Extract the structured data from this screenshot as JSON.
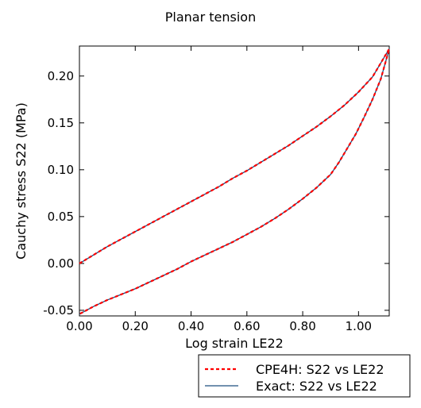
{
  "chart_data": {
    "type": "line",
    "title": "Planar tension",
    "xlabel": "Log strain LE22",
    "ylabel": "Cauchy stress S22 (MPa)",
    "xlim": [
      0.0,
      1.11
    ],
    "ylim": [
      -0.056,
      0.232
    ],
    "x_ticks": [
      "0.00",
      "0.20",
      "0.40",
      "0.60",
      "0.80",
      "1.00"
    ],
    "x_tick_values": [
      0.0,
      0.2,
      0.4,
      0.6,
      0.8,
      1.0
    ],
    "y_ticks": [
      "-0.05",
      "0.00",
      "0.05",
      "0.10",
      "0.15",
      "0.20"
    ],
    "y_tick_values": [
      -0.05,
      0.0,
      0.05,
      0.1,
      0.15,
      0.2
    ],
    "grid": false,
    "legend_position": "bottom-right outside",
    "series": [
      {
        "name": "CPE4H: S22 vs LE22",
        "style": "dashed",
        "color": "#ff0000",
        "x": [
          0.0,
          0.05,
          0.1,
          0.15,
          0.2,
          0.25,
          0.3,
          0.35,
          0.4,
          0.45,
          0.5,
          0.55,
          0.6,
          0.65,
          0.7,
          0.75,
          0.8,
          0.85,
          0.9,
          0.95,
          1.0,
          1.05,
          1.11,
          1.08,
          1.05,
          1.02,
          0.99,
          0.96,
          0.93,
          0.9,
          0.85,
          0.8,
          0.75,
          0.7,
          0.65,
          0.6,
          0.55,
          0.5,
          0.45,
          0.4,
          0.35,
          0.3,
          0.25,
          0.2,
          0.15,
          0.1,
          0.05,
          0.0
        ],
        "y": [
          0.0,
          0.009,
          0.018,
          0.026,
          0.034,
          0.042,
          0.05,
          0.058,
          0.066,
          0.074,
          0.082,
          0.091,
          0.099,
          0.108,
          0.117,
          0.126,
          0.136,
          0.146,
          0.157,
          0.169,
          0.183,
          0.199,
          0.229,
          0.197,
          0.175,
          0.156,
          0.138,
          0.123,
          0.108,
          0.095,
          0.081,
          0.069,
          0.058,
          0.048,
          0.039,
          0.031,
          0.023,
          0.016,
          0.009,
          0.002,
          -0.006,
          -0.013,
          -0.02,
          -0.027,
          -0.033,
          -0.039,
          -0.046,
          -0.054
        ]
      },
      {
        "name": "Exact: S22 vs LE22",
        "style": "solid",
        "color": "#1f4f7f",
        "x": [
          0.0,
          0.05,
          0.1,
          0.15,
          0.2,
          0.25,
          0.3,
          0.35,
          0.4,
          0.45,
          0.5,
          0.55,
          0.6,
          0.65,
          0.7,
          0.75,
          0.8,
          0.85,
          0.9,
          0.95,
          1.0,
          1.05,
          1.11,
          1.08,
          1.05,
          1.02,
          0.99,
          0.96,
          0.93,
          0.9,
          0.85,
          0.8,
          0.75,
          0.7,
          0.65,
          0.6,
          0.55,
          0.5,
          0.45,
          0.4,
          0.35,
          0.3,
          0.25,
          0.2,
          0.15,
          0.1,
          0.05,
          0.0
        ],
        "y": [
          0.0,
          0.009,
          0.018,
          0.026,
          0.034,
          0.042,
          0.05,
          0.058,
          0.066,
          0.074,
          0.082,
          0.091,
          0.099,
          0.108,
          0.117,
          0.126,
          0.136,
          0.146,
          0.157,
          0.169,
          0.183,
          0.199,
          0.229,
          0.197,
          0.175,
          0.156,
          0.138,
          0.123,
          0.108,
          0.095,
          0.081,
          0.069,
          0.058,
          0.048,
          0.039,
          0.031,
          0.023,
          0.016,
          0.009,
          0.002,
          -0.006,
          -0.013,
          -0.02,
          -0.027,
          -0.033,
          -0.039,
          -0.046,
          -0.054
        ]
      }
    ]
  }
}
